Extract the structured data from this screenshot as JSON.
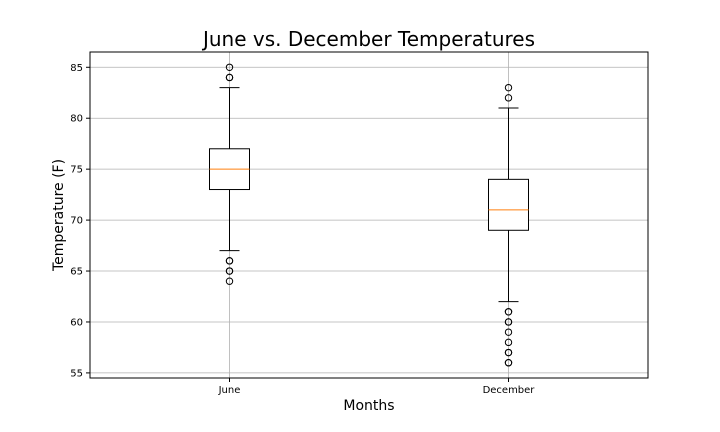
{
  "chart_data": {
    "type": "box",
    "title": "June vs. December Temperatures",
    "xlabel": "Months",
    "ylabel": "Temperature (F)",
    "ylim": [
      54.5,
      86.5
    ],
    "yticks": [
      55,
      60,
      65,
      70,
      75,
      80,
      85
    ],
    "grid": true,
    "series": [
      {
        "name": "June",
        "whisker_low": 67,
        "q1": 73,
        "median": 75,
        "q3": 77,
        "whisker_high": 83,
        "fliers": [
          64,
          65,
          65,
          66,
          66,
          84,
          84,
          85
        ]
      },
      {
        "name": "December",
        "whisker_low": 62,
        "q1": 69,
        "median": 71,
        "q3": 74,
        "whisker_high": 81,
        "fliers": [
          56,
          56,
          57,
          57,
          58,
          59,
          60,
          60,
          61,
          61,
          82,
          83
        ]
      }
    ]
  }
}
